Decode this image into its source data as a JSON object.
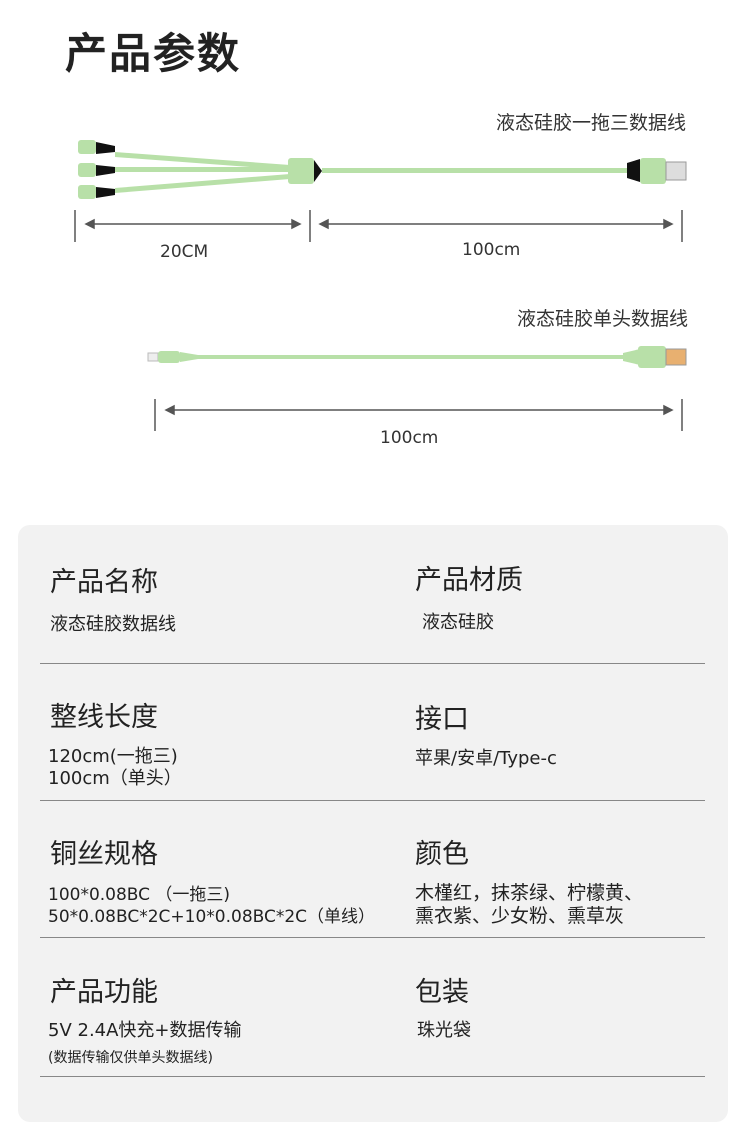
{
  "title": "产品参数",
  "diagram": {
    "cable1": {
      "caption": "液态硅胶一拖三数据线",
      "dim_left": "20CM",
      "dim_right": "100cm"
    },
    "cable2": {
      "caption": "液态硅胶单头数据线",
      "dim": "100cm"
    },
    "cable_color": "#b8e0a8"
  },
  "specs": [
    {
      "label": "产品名称",
      "value": [
        "液态硅胶数据线"
      ]
    },
    {
      "label": "产品材质",
      "value": [
        "液态硅胶"
      ]
    },
    {
      "label": "整线长度",
      "value": [
        "120cm(一拖三)",
        "100cm（单头）"
      ]
    },
    {
      "label": "接口",
      "value": [
        "苹果/安卓/Type-c"
      ]
    },
    {
      "label": "铜丝规格",
      "value": [
        "100*0.08BC （一拖三)",
        "50*0.08BC*2C+10*0.08BC*2C（单线）"
      ]
    },
    {
      "label": "颜色",
      "value": [
        "木槿红，抹茶绿、柠檬黄、",
        "熏衣紫、少女粉、熏草灰"
      ]
    },
    {
      "label": "产品功能",
      "value": [
        "5V 2.4A快充+数据传输"
      ],
      "note": "(数据传输仅供单头数据线)"
    },
    {
      "label": "包装",
      "value": [
        "珠光袋"
      ]
    }
  ]
}
